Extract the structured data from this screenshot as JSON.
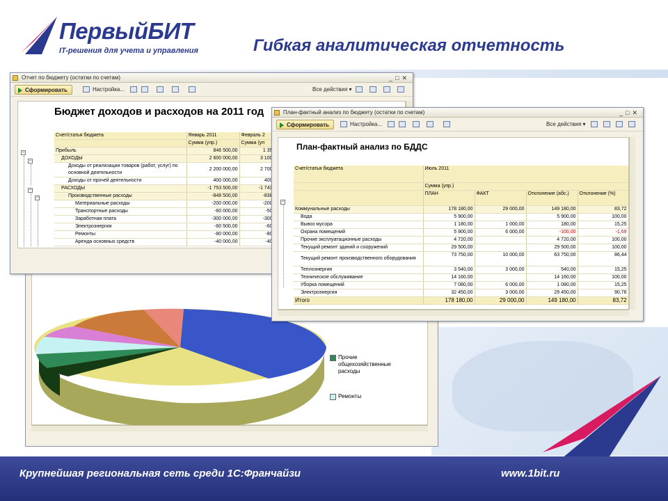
{
  "brand": {
    "name": "ПервыйБИТ",
    "tagline": "IT-решения для учета и управления"
  },
  "slide_title": "Гибкая аналитическая отчетность",
  "footer": {
    "left": "Крупнейшая региональная сеть среди 1С:Франчайзи",
    "right": "www.1bit.ru"
  },
  "window1": {
    "title": "Отчет по бюджету (остатки по счетам)",
    "toolbar": {
      "form_button": "Сформировать",
      "settings": "Настройка...",
      "all_actions": "Все действия ▾"
    },
    "report_title": "Бюджет доходов и расходов на 2011 год",
    "headers": [
      "Счет/статья бюджета",
      "Январь 2011",
      "Февраль 2"
    ],
    "subheaders": [
      "",
      "Сумма (упр.)",
      "Сумма (уп"
    ],
    "rows": [
      {
        "label": "Прибыль",
        "v1": "846 500,00",
        "v2": "1 35"
      },
      {
        "label": "ДОХОДЫ",
        "v1": "2 600 000,00",
        "v2": "3 100"
      },
      {
        "label": "Доходы от реализации товаров (работ, услуг) по основной деятельности",
        "v1": "2 200 000,00",
        "v2": "2 700"
      },
      {
        "label": "Доходы от прочей деятельности",
        "v1": "400 000,00",
        "v2": "400"
      },
      {
        "label": "РАСХОДЫ",
        "v1": "-1 753 500,00",
        "v2": "-1 743"
      },
      {
        "label": "Производственные расходы",
        "v1": "-848 500,00",
        "v2": "-838"
      },
      {
        "label": "Материальные расходы",
        "v1": "-200 000,00",
        "v2": "-200"
      },
      {
        "label": "Транспортные расходы",
        "v1": "-60 000,00",
        "v2": "-50"
      },
      {
        "label": "Заработная плата",
        "v1": "-300 000,00",
        "v2": "-300"
      },
      {
        "label": "Электроэнергия",
        "v1": "-60 500,00",
        "v2": "-60"
      },
      {
        "label": "Ремонты",
        "v1": "-80 000,00",
        "v2": "-80"
      },
      {
        "label": "Аренда основных средств",
        "v1": "-40 000,00",
        "v2": "-40"
      }
    ]
  },
  "window2": {
    "title": "План-фактный анализ по бюджету (остатки по счетам)",
    "toolbar": {
      "form_button": "Сформировать",
      "settings": "Настройка...",
      "all_actions": "Все действия ▾"
    },
    "report_title": "План-фактный анализ по БДДС",
    "headers": [
      "Счет/статья бюджета",
      "Июль 2011"
    ],
    "subheader": "Сумма (упр.)",
    "columns": [
      "ПЛАН",
      "ФАКТ",
      "Отклонение (абс.)",
      "Отклонение (%)"
    ],
    "rows": [
      {
        "label": "Коммунальные расходы",
        "plan": "178 180,00",
        "fact": "29 000,00",
        "abs": "149 180,00",
        "pct": "83,72"
      },
      {
        "label": "Вода",
        "plan": "5 900,00",
        "fact": "",
        "abs": "5 900,00",
        "pct": "100,00"
      },
      {
        "label": "Вывоз мусора",
        "plan": "1 180,00",
        "fact": "1 000,00",
        "abs": "180,00",
        "pct": "15,25"
      },
      {
        "label": "Охрана помещений",
        "plan": "5 900,00",
        "fact": "6 000,00",
        "abs": "-100,00",
        "pct": "-1,69"
      },
      {
        "label": "Прочие эксплуатационные расходы",
        "plan": "4 720,00",
        "fact": "",
        "abs": "4 720,00",
        "pct": "100,00"
      },
      {
        "label": "Текущий ремонт зданий и сооружений",
        "plan": "29 500,00",
        "fact": "",
        "abs": "29 500,00",
        "pct": "100,00"
      },
      {
        "label": "Текущий ремонт производственного оборудования",
        "plan": "73 750,00",
        "fact": "10 000,00",
        "abs": "63 750,00",
        "pct": "86,44"
      },
      {
        "label": "Теплоэнергия",
        "plan": "3 540,00",
        "fact": "3 000,00",
        "abs": "540,00",
        "pct": "15,25"
      },
      {
        "label": "Техническое обслуживание",
        "plan": "14 160,00",
        "fact": "",
        "abs": "14 160,00",
        "pct": "100,00"
      },
      {
        "label": "Уборка помещений",
        "plan": "7 080,00",
        "fact": "6 000,00",
        "abs": "1 080,00",
        "pct": "15,25"
      },
      {
        "label": "Электроэнергия",
        "plan": "32 450,00",
        "fact": "3 000,00",
        "abs": "29 450,00",
        "pct": "90,76"
      }
    ],
    "total": {
      "label": "Итого",
      "plan": "178 180,00",
      "fact": "29 000,00",
      "abs": "149 180,00",
      "pct": "83,72"
    }
  },
  "chart": {
    "legend": [
      "Прочие общехозяйственные расходы",
      "Ремонты"
    ],
    "colors": [
      "#2e8b57",
      "#c6f2f4"
    ]
  },
  "colors": {
    "brand_blue": "#2b3a8f",
    "footer_blue": "#2d3885",
    "negative": "#d20000"
  }
}
